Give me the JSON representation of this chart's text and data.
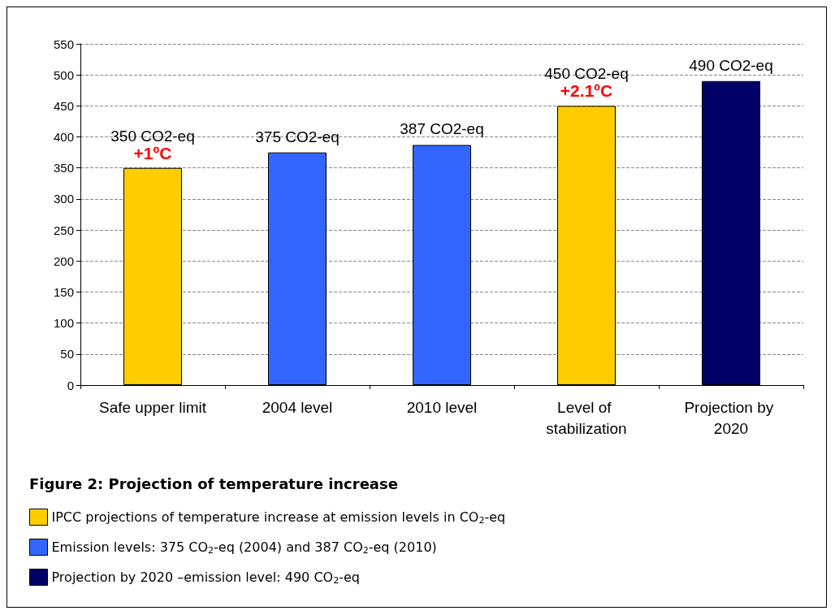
{
  "chart_data": {
    "type": "bar",
    "title": "Figure 2: Projection of temperature increase",
    "categories": [
      "Safe upper limit",
      "2004 level",
      "2010 level",
      "Level of stabilization",
      "Projection by 2020"
    ],
    "stacked": true,
    "series": [
      {
        "name": "IPCC projections of temperature increase at emission levels in CO$_{2}$-eq",
        "color": "#ffcc00",
        "values": [
          350,
          null,
          null,
          450,
          null
        ],
        "value_labels": [
          "350 CO2-eq",
          null,
          null,
          "450 CO2-eq",
          null
        ]
      },
      {
        "name": "Emission levels: 375 CO$_{2}$-eq (2004) and 387 CO$_{2}$-eq (2010)",
        "color": "#3366ff",
        "values": [
          null,
          375,
          387,
          null,
          null
        ],
        "value_labels": [
          null,
          "375 CO2-eq",
          "387 CO2-eq",
          null,
          null
        ]
      },
      {
        "name": "Projection by 2020 –emission level: 490 CO$_{2}$-eq",
        "color": "#000066",
        "values": [
          null,
          null,
          null,
          null,
          490
        ],
        "value_labels": [
          null,
          null,
          null,
          null,
          "490 CO2-eq"
        ]
      }
    ],
    "annotations": [
      {
        "text": "+1ºC",
        "x": "Safe upper limit",
        "y": 350
      },
      {
        "text": "+2.1ºC",
        "x": "Level of stabilization",
        "y": 450
      }
    ],
    "ylim": [
      0,
      550
    ],
    "yticks": [
      0,
      50,
      100,
      150,
      200,
      250,
      300,
      350,
      400,
      450,
      500,
      550
    ],
    "grid": "y",
    "legend": "bottom"
  }
}
